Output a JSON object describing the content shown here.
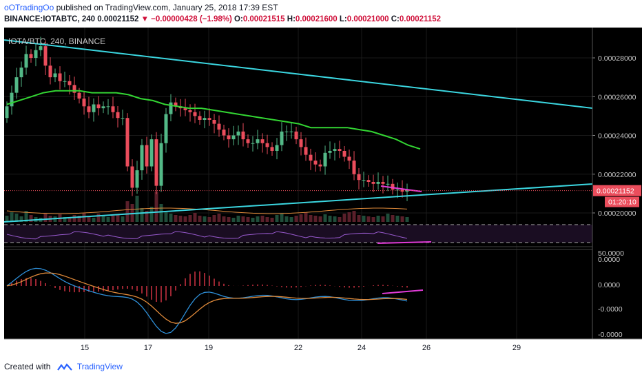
{
  "header": {
    "user": "oOTradingOo",
    "published_text": "published on TradingView.com, January 25, 2018 17:39 EST",
    "symbol": "BINANCE:IOTABTC, 240",
    "last": "0.00021152",
    "change": "▼ −0.00000428 (−1.98%)",
    "o_label": "O:",
    "o_value": "0.00021515",
    "h_label": "H:",
    "h_value": "0.00021600",
    "l_label": "L:",
    "l_value": "0.00021000",
    "c_label": "C:",
    "c_value": "0.00021152"
  },
  "chart_data": {
    "type": "candlestick",
    "title": "IOTA/BTC, 240, BINANCE",
    "x_ticks": [
      "15",
      "17",
      "19",
      "22",
      "24",
      "26",
      "29"
    ],
    "price_axis": {
      "ylim": [
        0.000193,
        0.000295
      ],
      "ticks": [
        "0.00028000",
        "0.00026000",
        "0.00024000",
        "0.00022000",
        "0.00020000"
      ],
      "last_price_label": "0.00021152",
      "countdown_label": "01:20:10"
    },
    "rsi_axis": {
      "ticks": [
        "50.0000"
      ]
    },
    "macd_axis": {
      "ticks": [
        "0.0000",
        "0.0000",
        "-0.0000",
        "-0.0000"
      ]
    },
    "close_series": [
      0.000255,
      0.000262,
      0.00027,
      0.000275,
      0.000282,
      0.00028,
      0.000284,
      0.000286,
      0.000276,
      0.00027,
      0.000272,
      0.000268,
      0.000268,
      0.000266,
      0.000262,
      0.000259,
      0.000255,
      0.000252,
      0.000256,
      0.000254,
      0.000255,
      0.000255,
      0.000252,
      0.000249,
      0.000249,
      0.000224,
      0.000213,
      0.000222,
      0.000235,
      0.000224,
      0.000238,
      0.000214,
      0.000236,
      0.000251,
      0.000257,
      0.000255,
      0.000254,
      0.000253,
      0.000252,
      0.00025,
      0.000248,
      0.000249,
      0.000248,
      0.000246,
      0.000243,
      0.00024,
      0.000238,
      0.00024,
      0.000242,
      0.000238,
      0.000236,
      0.000236,
      0.000238,
      0.000236,
      0.000234,
      0.000232,
      0.000235,
      0.000242,
      0.000242,
      0.000242,
      0.000238,
      0.000234,
      0.00023,
      0.000227,
      0.000225,
      0.000224,
      0.000231,
      0.000232,
      0.000233,
      0.000232,
      0.000229,
      0.000227,
      0.00022,
      0.000217,
      0.000217,
      0.000216,
      0.000215,
      0.000216,
      0.000215,
      0.000215,
      0.000212,
      0.000212,
      0.000211,
      0.000212
    ],
    "ma_series_start": [
      0.000256,
      0.000258,
      0.00026,
      0.000262,
      0.000263,
      0.000263,
      0.000263,
      0.000262,
      0.000262,
      0.000262,
      0.000261,
      0.000259,
      0.000258,
      0.000256,
      0.000255,
      0.000254,
      0.000254,
      0.000253,
      0.000252,
      0.000251,
      0.00025,
      0.000249,
      0.000248,
      0.000247,
      0.000246,
      0.000244,
      0.000244,
      0.000244,
      0.000244,
      0.000243,
      0.000242,
      0.00024,
      0.000238,
      0.000235,
      0.000233
    ]
  }
}
